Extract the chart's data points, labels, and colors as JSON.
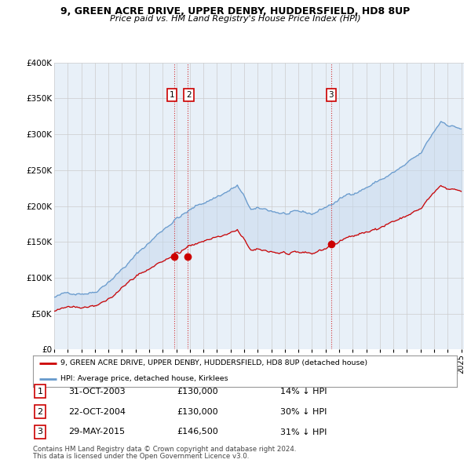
{
  "title": "9, GREEN ACRE DRIVE, UPPER DENBY, HUDDERSFIELD, HD8 8UP",
  "subtitle": "Price paid vs. HM Land Registry's House Price Index (HPI)",
  "ylim": [
    0,
    400000
  ],
  "yticks": [
    0,
    50000,
    100000,
    150000,
    200000,
    250000,
    300000,
    350000,
    400000
  ],
  "ytick_labels": [
    "£0",
    "£50K",
    "£100K",
    "£150K",
    "£200K",
    "£250K",
    "£300K",
    "£350K",
    "£400K"
  ],
  "sale_labels": [
    "1",
    "2",
    "3"
  ],
  "legend_property": "9, GREEN ACRE DRIVE, UPPER DENBY, HUDDERSFIELD, HD8 8UP (detached house)",
  "legend_hpi": "HPI: Average price, detached house, Kirklees",
  "table_rows": [
    {
      "num": "1",
      "date": "31-OCT-2003",
      "price": "£130,000",
      "note": "14% ↓ HPI"
    },
    {
      "num": "2",
      "date": "22-OCT-2004",
      "price": "£130,000",
      "note": "30% ↓ HPI"
    },
    {
      "num": "3",
      "date": "29-MAY-2015",
      "price": "£146,500",
      "note": "31% ↓ HPI"
    }
  ],
  "footer1": "Contains HM Land Registry data © Crown copyright and database right 2024.",
  "footer2": "This data is licensed under the Open Government Licence v3.0.",
  "property_line_color": "#cc0000",
  "hpi_line_color": "#6699cc",
  "vline_color": "#cc0000",
  "fill_color": "#dce6f1",
  "background_color": "#ffffff",
  "grid_color": "#cccccc"
}
